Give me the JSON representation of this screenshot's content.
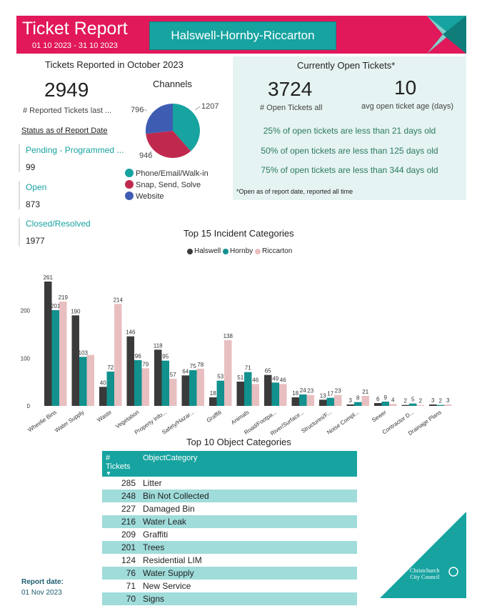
{
  "header": {
    "title": "Ticket Report",
    "date_range": "01 10 2023 - 31 10 2023",
    "region": "Halswell-Hornby-Riccarton"
  },
  "reported": {
    "heading": "Tickets Reported in October 2023",
    "count": "2949",
    "count_label": "# Reported Tickets last ..."
  },
  "status": {
    "heading": "Status as of Report Date",
    "items": [
      {
        "label": "Pending - Programmed ...",
        "value": "99"
      },
      {
        "label": "Open",
        "value": "873"
      },
      {
        "label": "Closed/Resolved",
        "value": "1977"
      }
    ]
  },
  "channels": {
    "heading": "Channels",
    "labels": [
      "1207",
      "946",
      "796"
    ],
    "legend": [
      {
        "name": "Phone/Email/Walk-in",
        "color": "#17a3a0"
      },
      {
        "name": "Snap, Send, Solve",
        "color": "#c0294e"
      },
      {
        "name": "Website",
        "color": "#3f5cb3"
      }
    ]
  },
  "open_tickets": {
    "heading": "Currently Open Tickets*",
    "count": "3724",
    "count_label": "# Open Tickets all",
    "avg_age": "10",
    "avg_age_label": "avg open ticket age (days)",
    "percentiles": [
      "25% of open tickets are less than 21 days old",
      "50% of open tickets are less than 125 days old",
      "75% of open tickets are less than 344 days old"
    ],
    "footnote": "*Open as of report date, reported all time"
  },
  "incident_chart": {
    "heading": "Top 15 Incident Categories",
    "legend": [
      {
        "name": "Halswell",
        "color": "#3a3a3a"
      },
      {
        "name": "Hornby",
        "color": "#12918e"
      },
      {
        "name": "Riccarton",
        "color": "#e8bfc0"
      }
    ]
  },
  "chart_data": {
    "type": "bar",
    "title": "Top 15 Incident Categories",
    "categories": [
      "Wheelie Bins",
      "Water Supply",
      "Waste",
      "Vegetation",
      "Property Info...",
      "Safety/Hazar...",
      "Graffiti",
      "Animals",
      "Road/Footpa...",
      "River/Surface...",
      "Structures/F...",
      "Noise Compl...",
      "Sewer",
      "Contractor D...",
      "Drainage Plans"
    ],
    "series": [
      {
        "name": "Halswell",
        "values": [
          261,
          190,
          40,
          146,
          118,
          64,
          18,
          51,
          65,
          18,
          13,
          3,
          6,
          2,
          3
        ]
      },
      {
        "name": "Hornby",
        "values": [
          201,
          103,
          72,
          96,
          95,
          75,
          53,
          71,
          49,
          24,
          17,
          8,
          9,
          5,
          2
        ]
      },
      {
        "name": "Riccarton",
        "values": [
          219,
          107,
          214,
          79,
          57,
          78,
          138,
          46,
          46,
          23,
          23,
          21,
          4,
          2,
          3
        ]
      }
    ],
    "data_labels": [
      [
        "261",
        "190",
        "40",
        "146",
        "118",
        "64",
        "18",
        "51",
        "65",
        "18",
        "13",
        "3",
        "6",
        "2",
        "3"
      ],
      [
        "201",
        "103",
        "72",
        "96",
        "95",
        "75",
        "53",
        "71",
        "49",
        "24",
        "17",
        "8",
        "9",
        "5",
        "2"
      ],
      [
        "219",
        "",
        "214",
        "79",
        "57",
        "78",
        "138",
        "46",
        "46",
        "23",
        "23",
        "21",
        "4",
        "2",
        "3"
      ]
    ],
    "yticks": [
      "0",
      "100",
      "200"
    ],
    "ylim": [
      0,
      270
    ],
    "grid": false,
    "legend": "top-center"
  },
  "object_table": {
    "heading": "Top 10 Object Categories",
    "col_count": "# Tickets",
    "col_category": "ObjectCategory",
    "rows": [
      {
        "count": "285",
        "category": "Litter"
      },
      {
        "count": "248",
        "category": "Bin Not Collected"
      },
      {
        "count": "227",
        "category": "Damaged Bin"
      },
      {
        "count": "216",
        "category": "Water Leak"
      },
      {
        "count": "209",
        "category": "Graffiti"
      },
      {
        "count": "201",
        "category": "Trees"
      },
      {
        "count": "124",
        "category": "Residential LIM"
      },
      {
        "count": "76",
        "category": "Water Supply"
      },
      {
        "count": "71",
        "category": "New Service"
      },
      {
        "count": "70",
        "category": "Signs"
      }
    ]
  },
  "footer": {
    "report_date_label": "Report date:",
    "report_date": "01 Nov 2023",
    "logo_line1": "Christchurch",
    "logo_line2": "City Council"
  }
}
